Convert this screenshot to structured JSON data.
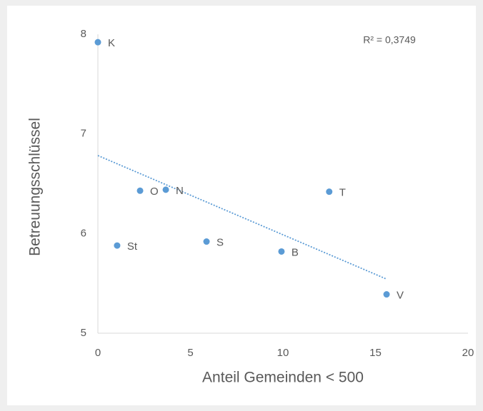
{
  "chart_data": {
    "type": "scatter",
    "x_label": "Anteil Gemeinden < 500",
    "y_label": "Betreuungsschlüssel",
    "annotation": "R² = 0,3749",
    "series": [
      {
        "color": "#5b9bd5",
        "labels": [
          "K",
          "O",
          "N",
          "T",
          "St",
          "S",
          "B",
          "V"
        ],
        "x": [
          0,
          2.28,
          3.67,
          12.5,
          1.04,
          5.87,
          9.92,
          15.6
        ],
        "values": [
          7.92,
          6.43,
          6.44,
          6.42,
          5.88,
          5.92,
          5.82,
          5.39
        ]
      }
    ],
    "trendline": true,
    "xlim": [
      0,
      20
    ],
    "xticks": [
      0,
      5,
      10,
      15,
      20
    ],
    "ylim": [
      5,
      8
    ],
    "yticks": [
      5,
      6,
      7,
      8
    ],
    "grid": false
  }
}
